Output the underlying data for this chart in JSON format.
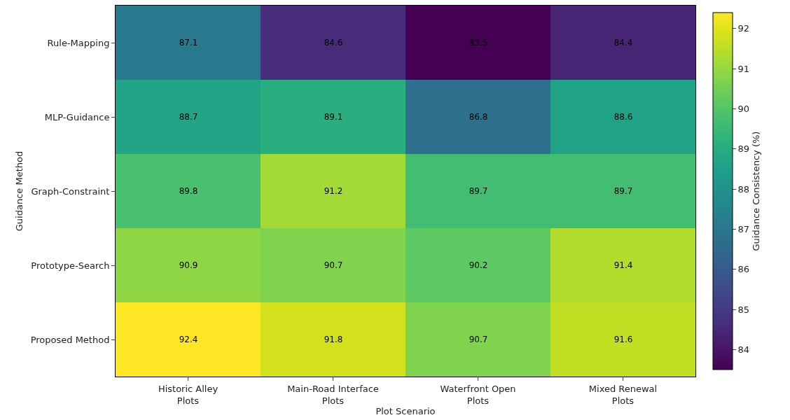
{
  "chart_data": {
    "type": "heatmap",
    "xlabel": "Plot Scenario",
    "ylabel": "Guidance Method",
    "clabel": "Guidance Consistency (%)",
    "categories": [
      "Historic Alley\nPlots",
      "Main-Road Interface\nPlots",
      "Waterfront Open\nPlots",
      "Mixed Renewal\nPlots"
    ],
    "y_categories": [
      "Rule-Mapping",
      "MLP-Guidance",
      "Graph-Constraint",
      "Prototype-Search",
      "Proposed Method"
    ],
    "cells": [
      [
        87.1,
        84.6,
        83.5,
        84.4
      ],
      [
        88.7,
        89.1,
        86.8,
        88.6
      ],
      [
        89.8,
        91.2,
        89.7,
        89.7
      ],
      [
        90.9,
        90.7,
        90.2,
        91.4
      ],
      [
        92.4,
        91.8,
        90.7,
        91.6
      ]
    ],
    "clim": [
      83.5,
      92.4
    ],
    "cticks": [
      84,
      85,
      86,
      87,
      88,
      89,
      90,
      91,
      92
    ],
    "data_labels": true
  }
}
